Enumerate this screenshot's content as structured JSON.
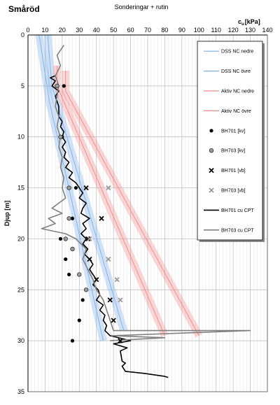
{
  "chart_data": {
    "type": "line",
    "title": "Småröd",
    "subtitle": "Sonderingar + rutin",
    "xlabel_main": "c",
    "xlabel_sub": "u",
    "xlabel_unit": "[kPa]",
    "ylabel": "Djup [m]",
    "x_axis_position": "top",
    "y_inverted": true,
    "xlim": [
      0,
      140
    ],
    "ylim": [
      0,
      35
    ],
    "x_ticks": [
      0,
      10,
      20,
      30,
      40,
      50,
      60,
      70,
      80,
      90,
      100,
      110,
      120,
      130,
      140
    ],
    "y_ticks": [
      0,
      5,
      10,
      15,
      20,
      25,
      30,
      35
    ],
    "grid": true,
    "legend_position": "top-right",
    "bands": [
      {
        "name": "DSS NC nedre",
        "kind": "band",
        "color": "#7eaee8",
        "points": [
          [
            6.5,
            0
          ],
          [
            12.5,
            6.5
          ],
          [
            44,
            30
          ]
        ]
      },
      {
        "name": "DSS NC övre",
        "kind": "band",
        "color": "#7eaee8",
        "points": [
          [
            11.5,
            0
          ],
          [
            14,
            5
          ],
          [
            56,
            29
          ]
        ]
      },
      {
        "name": "Aktiv NC nedre",
        "kind": "band",
        "color": "#f08a8a",
        "points": [
          [
            17,
            3
          ],
          [
            17,
            5
          ],
          [
            80,
            29.5
          ]
        ]
      },
      {
        "name": "Aktiv NC övre",
        "kind": "band",
        "color": "#f08a8a",
        "points": [
          [
            22,
            3.5
          ],
          [
            22,
            5.5
          ],
          [
            100,
            29.5
          ]
        ]
      }
    ],
    "points": [
      {
        "name": "BH701",
        "method": "[kv]",
        "marker": "dot",
        "data": [
          [
            21,
            5
          ],
          [
            20,
            10
          ],
          [
            28,
            15
          ],
          [
            26,
            18
          ],
          [
            19,
            20
          ],
          [
            22,
            22
          ],
          [
            24,
            23.5
          ],
          [
            32,
            26
          ],
          [
            30,
            28
          ],
          [
            26,
            30
          ]
        ]
      },
      {
        "name": "BH703",
        "method": "[kv]",
        "marker": "dot-grey",
        "data": [
          [
            17,
            5
          ],
          [
            19,
            10
          ],
          [
            24,
            15
          ],
          [
            24,
            18
          ],
          [
            22,
            20
          ],
          [
            26,
            21
          ],
          [
            30,
            23.5
          ],
          [
            34,
            25
          ]
        ]
      },
      {
        "name": "BH701",
        "method": "[vb]",
        "marker": "x",
        "data": [
          [
            34,
            15
          ],
          [
            43,
            18
          ],
          [
            35,
            20
          ],
          [
            36,
            22
          ],
          [
            40,
            24
          ],
          [
            48,
            26
          ],
          [
            50,
            28
          ],
          [
            54,
            30
          ]
        ]
      },
      {
        "name": "BH703",
        "method": "[vb]",
        "marker": "x-grey",
        "data": [
          [
            47,
            15
          ],
          [
            36,
            20
          ],
          [
            47,
            22
          ],
          [
            52,
            24
          ],
          [
            54,
            26
          ]
        ]
      }
    ],
    "series": [
      {
        "name": "BH701 cu CPT",
        "color": "#000000",
        "width": 1.6,
        "data": [
          [
            16,
            4
          ],
          [
            13,
            4.2
          ],
          [
            16,
            4.5
          ],
          [
            14,
            5
          ],
          [
            18,
            5.5
          ],
          [
            16,
            6
          ],
          [
            17,
            6.5
          ],
          [
            18,
            7
          ],
          [
            18,
            8
          ],
          [
            20,
            8.5
          ],
          [
            19,
            9
          ],
          [
            21,
            9.5
          ],
          [
            20,
            10
          ],
          [
            22,
            10.5
          ],
          [
            20,
            11
          ],
          [
            22,
            11.5
          ],
          [
            21,
            12
          ],
          [
            24,
            12.5
          ],
          [
            22,
            13
          ],
          [
            26,
            13.5
          ],
          [
            24,
            14
          ],
          [
            28,
            14.5
          ],
          [
            30,
            15
          ],
          [
            32,
            15.5
          ],
          [
            30,
            16
          ],
          [
            34,
            16.5
          ],
          [
            32,
            17
          ],
          [
            31,
            17.5
          ],
          [
            36,
            18
          ],
          [
            32,
            18.5
          ],
          [
            34,
            19
          ],
          [
            31,
            19.5
          ],
          [
            34,
            20
          ],
          [
            32,
            20.5
          ],
          [
            35,
            21
          ],
          [
            33,
            21.5
          ],
          [
            36,
            22
          ],
          [
            38,
            22.5
          ],
          [
            36,
            23
          ],
          [
            38,
            23.5
          ],
          [
            40,
            24
          ],
          [
            38,
            24.5
          ],
          [
            41,
            25
          ],
          [
            42,
            25.5
          ],
          [
            40,
            26
          ],
          [
            44,
            26.5
          ],
          [
            42,
            27
          ],
          [
            45,
            27.5
          ],
          [
            44,
            28
          ],
          [
            46,
            28.5
          ],
          [
            45,
            29
          ],
          [
            48,
            29.5
          ],
          [
            60,
            30
          ],
          [
            50,
            30.3
          ],
          [
            58,
            30.7
          ],
          [
            54,
            31
          ],
          [
            55,
            32
          ],
          [
            57,
            32.2
          ],
          [
            55,
            32.5
          ],
          [
            57,
            33
          ],
          [
            68,
            33.2
          ],
          [
            80,
            33.5
          ],
          [
            82,
            33.6
          ]
        ]
      },
      {
        "name": "BH703 cu CPT",
        "color": "#808080",
        "width": 1.6,
        "data": [
          [
            21,
            1
          ],
          [
            17,
            2
          ],
          [
            19,
            3
          ],
          [
            16,
            4
          ],
          [
            18,
            5
          ],
          [
            17,
            6
          ],
          [
            16,
            7
          ],
          [
            18,
            8
          ],
          [
            17,
            9
          ],
          [
            19,
            10
          ],
          [
            18,
            11
          ],
          [
            20,
            12
          ],
          [
            19,
            13
          ],
          [
            21,
            14
          ],
          [
            20,
            15
          ],
          [
            22,
            16
          ],
          [
            14,
            17
          ],
          [
            20,
            17.5
          ],
          [
            12,
            18
          ],
          [
            16,
            18.5
          ],
          [
            8,
            19
          ],
          [
            22,
            19.5
          ],
          [
            28,
            20
          ],
          [
            34,
            21
          ],
          [
            32,
            22
          ],
          [
            35,
            23
          ],
          [
            38,
            24
          ],
          [
            40,
            25
          ],
          [
            44,
            26
          ],
          [
            46,
            27
          ],
          [
            48,
            28
          ],
          [
            50,
            29
          ],
          [
            130,
            29
          ],
          [
            49,
            29.5
          ],
          [
            80,
            29.7
          ],
          [
            48,
            30
          ]
        ]
      }
    ]
  }
}
